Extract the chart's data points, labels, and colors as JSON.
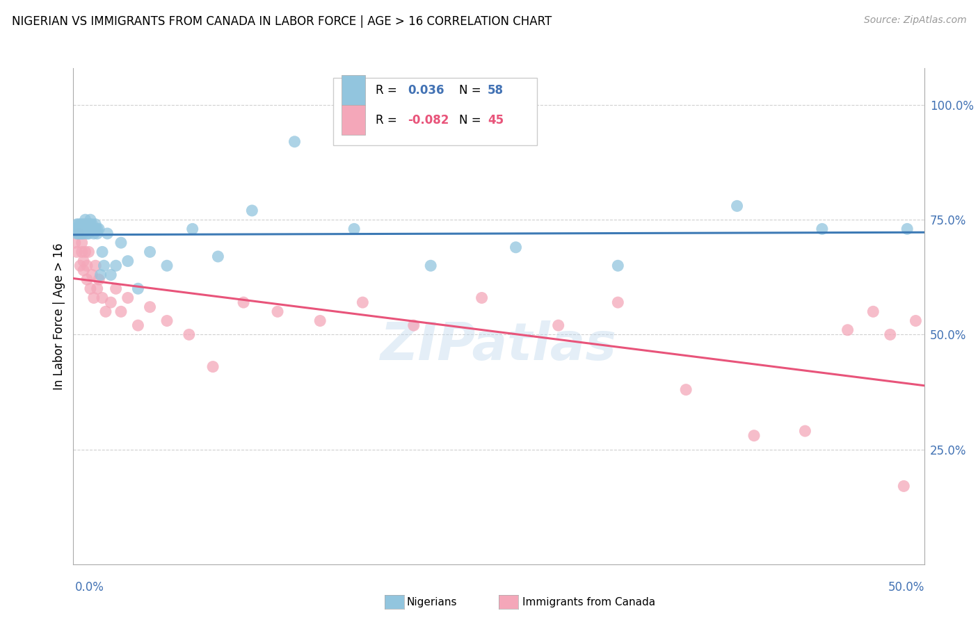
{
  "title": "NIGERIAN VS IMMIGRANTS FROM CANADA IN LABOR FORCE | AGE > 16 CORRELATION CHART",
  "source": "Source: ZipAtlas.com",
  "ylabel": "In Labor Force | Age > 16",
  "xmin": 0.0,
  "xmax": 0.5,
  "ymin": 0.0,
  "ymax": 1.08,
  "yticks": [
    0.25,
    0.5,
    0.75,
    1.0
  ],
  "ytick_labels": [
    "25.0%",
    "50.0%",
    "75.0%",
    "100.0%"
  ],
  "blue_color": "#92c5de",
  "pink_color": "#f4a7b9",
  "blue_line_color": "#3d7ab5",
  "pink_line_color": "#e8547a",
  "watermark": "ZIPatlas",
  "nigerians_x": [
    0.001,
    0.002,
    0.002,
    0.003,
    0.003,
    0.003,
    0.004,
    0.004,
    0.004,
    0.005,
    0.005,
    0.005,
    0.006,
    0.006,
    0.006,
    0.007,
    0.007,
    0.007,
    0.008,
    0.008,
    0.008,
    0.009,
    0.009,
    0.009,
    0.01,
    0.01,
    0.01,
    0.011,
    0.011,
    0.012,
    0.012,
    0.013,
    0.013,
    0.014,
    0.014,
    0.015,
    0.016,
    0.017,
    0.018,
    0.02,
    0.022,
    0.025,
    0.028,
    0.032,
    0.038,
    0.045,
    0.055,
    0.07,
    0.085,
    0.105,
    0.13,
    0.165,
    0.21,
    0.26,
    0.32,
    0.39,
    0.44,
    0.49
  ],
  "nigerians_y": [
    0.73,
    0.74,
    0.72,
    0.73,
    0.74,
    0.72,
    0.73,
    0.74,
    0.72,
    0.73,
    0.74,
    0.72,
    0.73,
    0.74,
    0.72,
    0.73,
    0.74,
    0.75,
    0.72,
    0.73,
    0.74,
    0.73,
    0.74,
    0.72,
    0.73,
    0.74,
    0.75,
    0.73,
    0.74,
    0.73,
    0.72,
    0.73,
    0.74,
    0.73,
    0.72,
    0.73,
    0.63,
    0.68,
    0.65,
    0.72,
    0.63,
    0.65,
    0.7,
    0.66,
    0.6,
    0.68,
    0.65,
    0.73,
    0.67,
    0.77,
    0.92,
    0.73,
    0.65,
    0.69,
    0.65,
    0.78,
    0.73,
    0.73
  ],
  "canada_x": [
    0.001,
    0.002,
    0.003,
    0.004,
    0.005,
    0.005,
    0.006,
    0.006,
    0.007,
    0.008,
    0.008,
    0.009,
    0.01,
    0.011,
    0.012,
    0.013,
    0.014,
    0.015,
    0.017,
    0.019,
    0.022,
    0.025,
    0.028,
    0.032,
    0.038,
    0.045,
    0.055,
    0.068,
    0.082,
    0.1,
    0.12,
    0.145,
    0.17,
    0.2,
    0.24,
    0.285,
    0.32,
    0.36,
    0.4,
    0.43,
    0.455,
    0.47,
    0.48,
    0.488,
    0.495
  ],
  "canada_y": [
    0.7,
    0.68,
    0.72,
    0.65,
    0.68,
    0.7,
    0.66,
    0.64,
    0.68,
    0.65,
    0.62,
    0.68,
    0.6,
    0.63,
    0.58,
    0.65,
    0.6,
    0.62,
    0.58,
    0.55,
    0.57,
    0.6,
    0.55,
    0.58,
    0.52,
    0.56,
    0.53,
    0.5,
    0.43,
    0.57,
    0.55,
    0.53,
    0.57,
    0.52,
    0.58,
    0.52,
    0.57,
    0.38,
    0.28,
    0.29,
    0.51,
    0.55,
    0.5,
    0.17,
    0.53
  ]
}
